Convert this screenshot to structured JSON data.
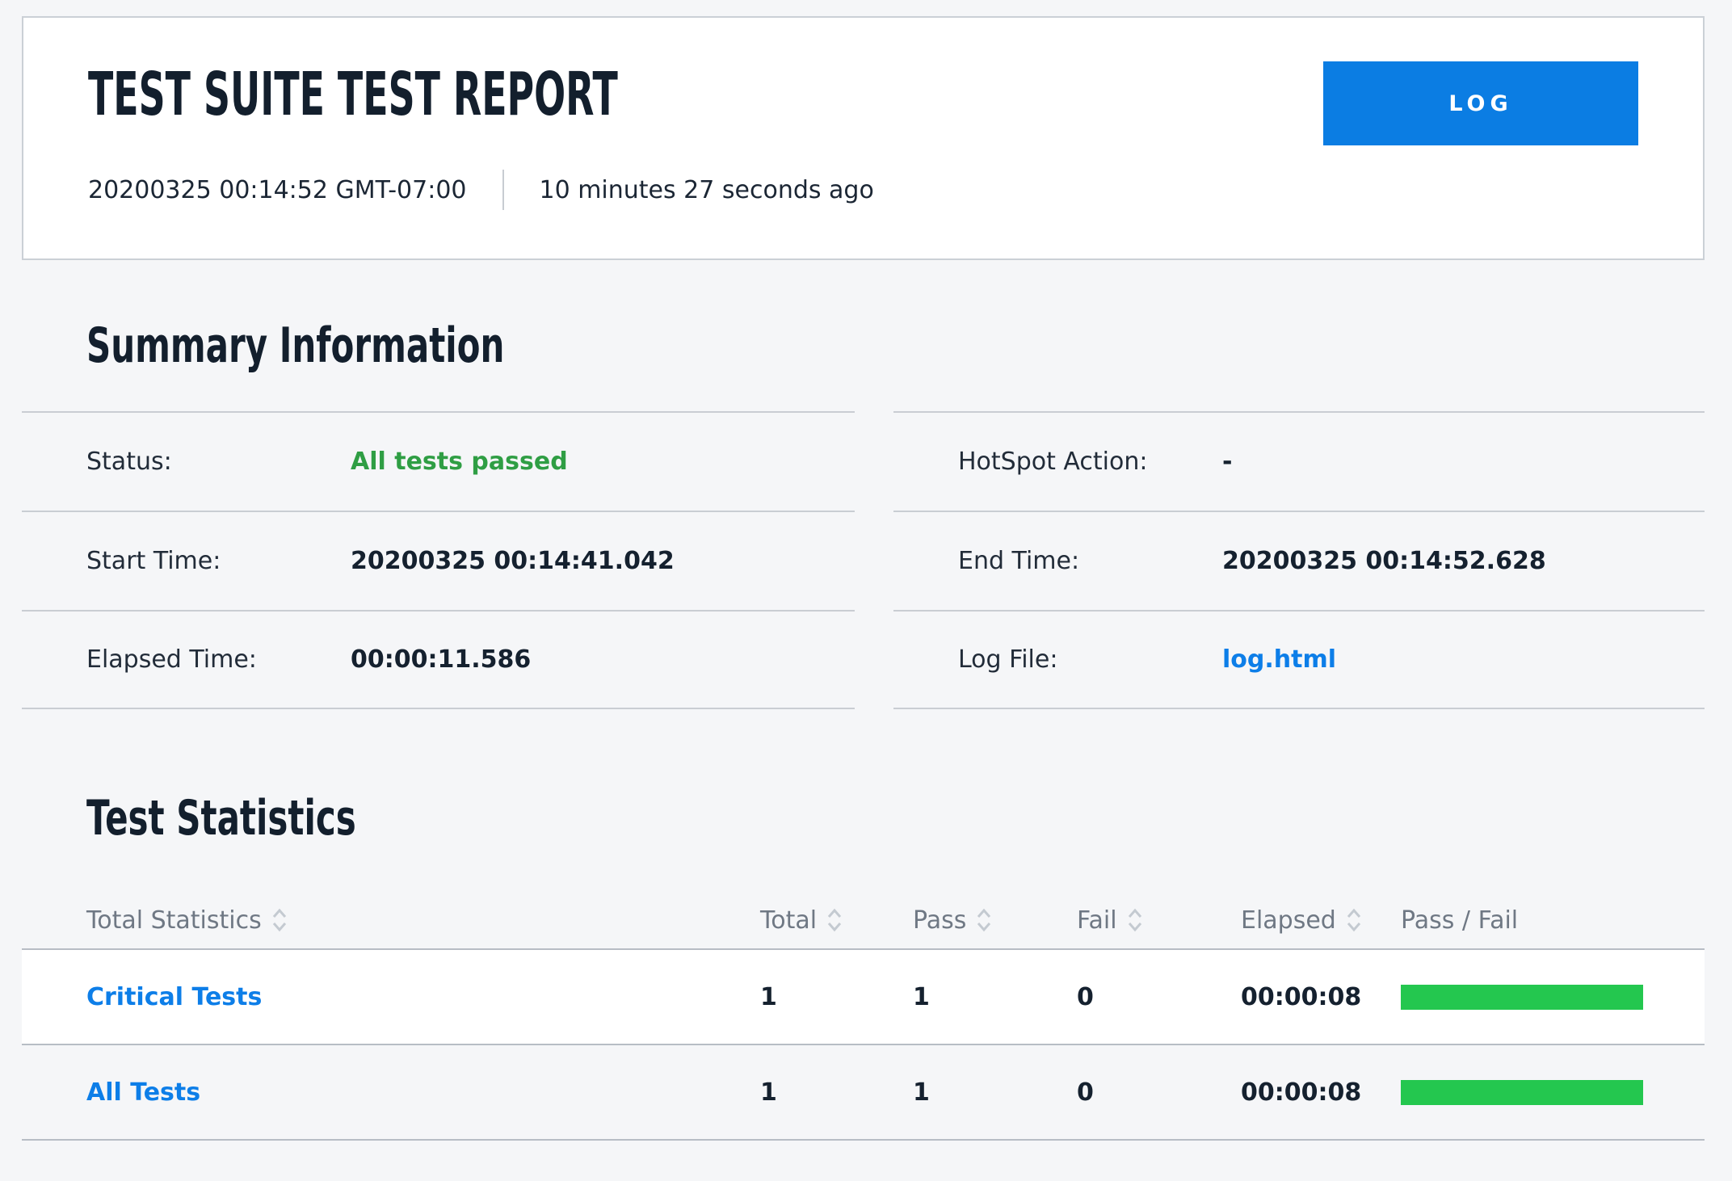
{
  "header": {
    "title": "TEST SUITE TEST REPORT",
    "generated_timestamp": "20200325 00:14:52 GMT-07:00",
    "generated_ago": "10 minutes 27 seconds ago",
    "log_button_label": "LOG"
  },
  "summary": {
    "heading": "Summary Information",
    "left": [
      {
        "label": "Status:",
        "value": "All tests passed"
      },
      {
        "label": "Start Time:",
        "value": "20200325 00:14:41.042"
      },
      {
        "label": "Elapsed Time:",
        "value": "00:00:11.586"
      }
    ],
    "right": [
      {
        "label": "HotSpot Action:",
        "value": "-"
      },
      {
        "label": "End Time:",
        "value": "20200325 00:14:52.628"
      },
      {
        "label": "Log File:",
        "value": "log.html"
      }
    ]
  },
  "statistics": {
    "heading": "Test Statistics",
    "columns": {
      "name": "Total Statistics",
      "total": "Total",
      "pass": "Pass",
      "fail": "Fail",
      "elapsed": "Elapsed",
      "passfail": "Pass / Fail"
    },
    "rows": [
      {
        "name": "Critical Tests",
        "total": "1",
        "pass": "1",
        "fail": "0",
        "elapsed": "00:00:08",
        "pass_pct": 100
      },
      {
        "name": "All Tests",
        "total": "1",
        "pass": "1",
        "fail": "0",
        "elapsed": "00:00:08",
        "pass_pct": 100
      }
    ]
  },
  "colors": {
    "accent_blue": "#0b7de3",
    "link_blue": "#0d7ee8",
    "pass_green": "#2f9e44",
    "bar_green": "#24c74f",
    "heading_navy": "#131f2d"
  }
}
